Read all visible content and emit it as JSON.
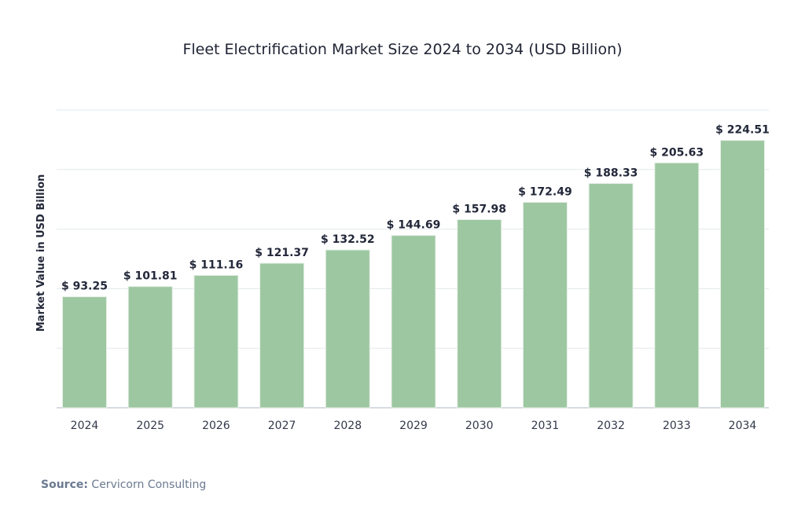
{
  "chart_data": {
    "type": "bar",
    "title": "Fleet Electrification Market Size 2024 to 2034 (USD Billion)",
    "xlabel": "",
    "ylabel": "Market Value in USD Billion",
    "categories": [
      "2024",
      "2025",
      "2026",
      "2027",
      "2028",
      "2029",
      "2030",
      "2031",
      "2032",
      "2033",
      "2034"
    ],
    "values": [
      93.25,
      101.81,
      111.16,
      121.37,
      132.52,
      144.69,
      157.98,
      172.49,
      188.33,
      205.63,
      224.51
    ],
    "value_labels": [
      "$ 93.25",
      "$ 101.81",
      "$ 111.16",
      "$ 121.37",
      "$ 132.52",
      "$ 144.69",
      "$ 157.98",
      "$ 172.49",
      "$ 188.33",
      "$ 205.63",
      "$ 224.51"
    ],
    "ylim": [
      0,
      250
    ],
    "ytick_step": 50,
    "grid": true,
    "y_tick_labels_shown": false,
    "bar_color": "#9dc7a1",
    "grid_color": "#e3e8ec"
  },
  "source": {
    "label": "Source:",
    "text": " Cervicorn Consulting"
  }
}
